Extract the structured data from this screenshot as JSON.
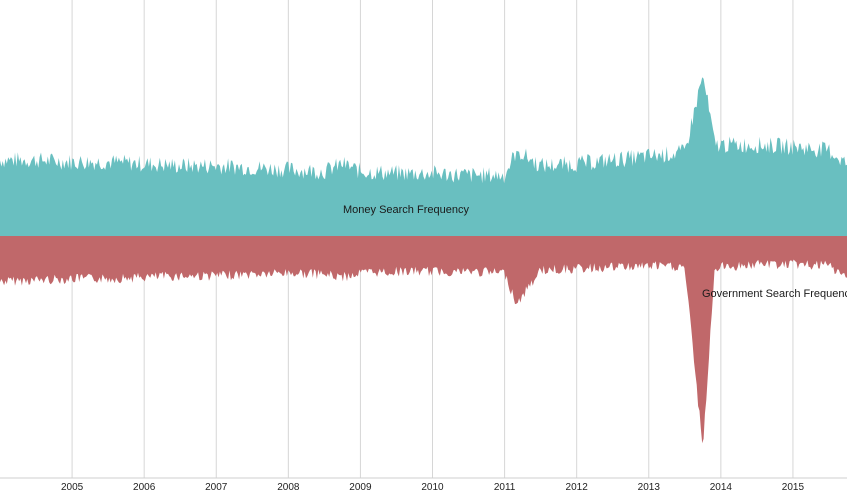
{
  "chart_data": {
    "type": "area",
    "layout": "streamgraph",
    "xlim": [
      "2004-01-01",
      "2015-10-01"
    ],
    "x_ticks": [
      "2005",
      "2006",
      "2007",
      "2008",
      "2009",
      "2010",
      "2011",
      "2012",
      "2013",
      "2014",
      "2015"
    ],
    "y_unit": "relative search frequency",
    "series": [
      {
        "name": "Money Search Frequency",
        "color": "#69bfc0",
        "weekly_variation": "high",
        "points": [
          [
            "2004-01",
            40
          ],
          [
            "2004-07",
            40
          ],
          [
            "2005-01",
            39
          ],
          [
            "2005-07",
            39
          ],
          [
            "2006-01",
            38
          ],
          [
            "2006-07",
            37
          ],
          [
            "2007-01",
            37
          ],
          [
            "2007-07",
            36
          ],
          [
            "2008-01",
            35
          ],
          [
            "2008-07",
            34
          ],
          [
            "2008-10",
            38
          ],
          [
            "2009-01",
            34
          ],
          [
            "2009-07",
            33
          ],
          [
            "2010-01",
            33
          ],
          [
            "2010-07",
            32
          ],
          [
            "2011-01",
            32
          ],
          [
            "2011-03",
            45
          ],
          [
            "2011-07",
            37
          ],
          [
            "2012-01",
            38
          ],
          [
            "2012-07",
            40
          ],
          [
            "2013-01",
            42
          ],
          [
            "2013-07",
            44
          ],
          [
            "2013-10",
            85
          ],
          [
            "2013-12",
            48
          ],
          [
            "2014-07",
            48
          ],
          [
            "2015-01",
            47
          ],
          [
            "2015-07",
            45
          ],
          [
            "2015-10",
            38
          ]
        ]
      },
      {
        "name": "Government Search Frequency",
        "color": "#c0686a",
        "weekly_variation": "medium",
        "points": [
          [
            "2004-01",
            32
          ],
          [
            "2004-07",
            31
          ],
          [
            "2005-01",
            30
          ],
          [
            "2005-07",
            30
          ],
          [
            "2006-01",
            29
          ],
          [
            "2006-07",
            28
          ],
          [
            "2007-01",
            28
          ],
          [
            "2007-07",
            27
          ],
          [
            "2008-01",
            26
          ],
          [
            "2008-07",
            27
          ],
          [
            "2008-10",
            29
          ],
          [
            "2009-01",
            26
          ],
          [
            "2009-07",
            25
          ],
          [
            "2010-01",
            25
          ],
          [
            "2010-07",
            25
          ],
          [
            "2011-01",
            26
          ],
          [
            "2011-03",
            48
          ],
          [
            "2011-07",
            24
          ],
          [
            "2012-01",
            23
          ],
          [
            "2012-07",
            22
          ],
          [
            "2013-01",
            21
          ],
          [
            "2013-07",
            22
          ],
          [
            "2013-10",
            150
          ],
          [
            "2013-12",
            22
          ],
          [
            "2014-07",
            20
          ],
          [
            "2015-01",
            20
          ],
          [
            "2015-07",
            21
          ],
          [
            "2015-10",
            30
          ]
        ]
      }
    ],
    "grid": {
      "vertical": true,
      "horizontal": false
    },
    "legend": "inline labels"
  }
}
